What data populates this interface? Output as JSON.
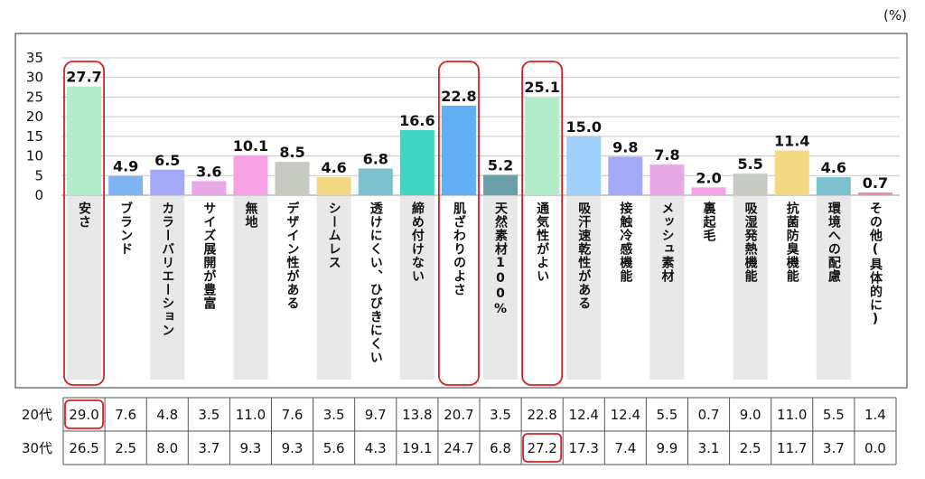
{
  "unit_label": "(%)",
  "chart_data": {
    "type": "bar",
    "ylim": [
      0,
      35
    ],
    "yticks": [
      0,
      5,
      10,
      15,
      20,
      25,
      30,
      35
    ],
    "grid": true,
    "categories": [
      "安さ",
      "ブランド",
      "カラーバリエーション",
      "サイズ展開が豊富",
      "無地",
      "デザイン性がある",
      "シームレス",
      "透けにくい、ひびきにくい",
      "締め付けない",
      "肌ざわりのよさ",
      "天然素材100%",
      "通気性がよい",
      "吸汗速乾性がある",
      "接触冷感機能",
      "メッシュ素材",
      "裏起毛",
      "吸湿発熱機能",
      "抗菌防臭機能",
      "環境への配慮",
      "その他(具体的に)"
    ],
    "values": [
      27.7,
      4.9,
      6.5,
      3.6,
      10.1,
      8.5,
      4.6,
      6.8,
      16.6,
      22.8,
      5.2,
      25.1,
      15.0,
      9.8,
      7.8,
      2.0,
      5.5,
      11.4,
      4.6,
      0.7
    ],
    "value_labels": [
      "27.7",
      "4.9",
      "6.5",
      "3.6",
      "10.1",
      "8.5",
      "4.6",
      "6.8",
      "16.6",
      "22.8",
      "5.2",
      "25.1",
      "15.0",
      "9.8",
      "7.8",
      "2.0",
      "5.5",
      "11.4",
      "4.6",
      "0.7"
    ],
    "bar_colors": [
      "#b3ecc8",
      "#7fb5f5",
      "#a3a8f7",
      "#e7a8e8",
      "#f7a2e6",
      "#c7c9c3",
      "#f4d883",
      "#7dc0ce",
      "#3fd5c2",
      "#62aef5",
      "#6a9faa",
      "#b3ecc8",
      "#9fd0fa",
      "#a3a8f7",
      "#e7a8e8",
      "#f7a2e6",
      "#c7c9c3",
      "#f4d883",
      "#7dc0ce",
      "#e890a9"
    ],
    "highlighted": [
      "安さ",
      "肌ざわりのよさ",
      "通気性がよい"
    ],
    "highlight_color": "#d62027",
    "table": {
      "row_labels": [
        "20代",
        "30代"
      ],
      "rows": [
        [
          "29.0",
          "7.6",
          "4.8",
          "3.5",
          "11.0",
          "7.6",
          "3.5",
          "9.7",
          "13.8",
          "20.7",
          "3.5",
          "22.8",
          "12.4",
          "12.4",
          "5.5",
          "0.7",
          "9.0",
          "11.0",
          "5.5",
          "1.4"
        ],
        [
          "26.5",
          "2.5",
          "8.0",
          "3.7",
          "9.3",
          "9.3",
          "5.6",
          "4.3",
          "19.1",
          "24.7",
          "6.8",
          "27.2",
          "17.3",
          "7.4",
          "9.9",
          "3.1",
          "2.5",
          "11.7",
          "3.7",
          "0.0"
        ]
      ],
      "highlighted_cells": [
        [
          0,
          0
        ],
        [
          1,
          11
        ]
      ]
    }
  }
}
